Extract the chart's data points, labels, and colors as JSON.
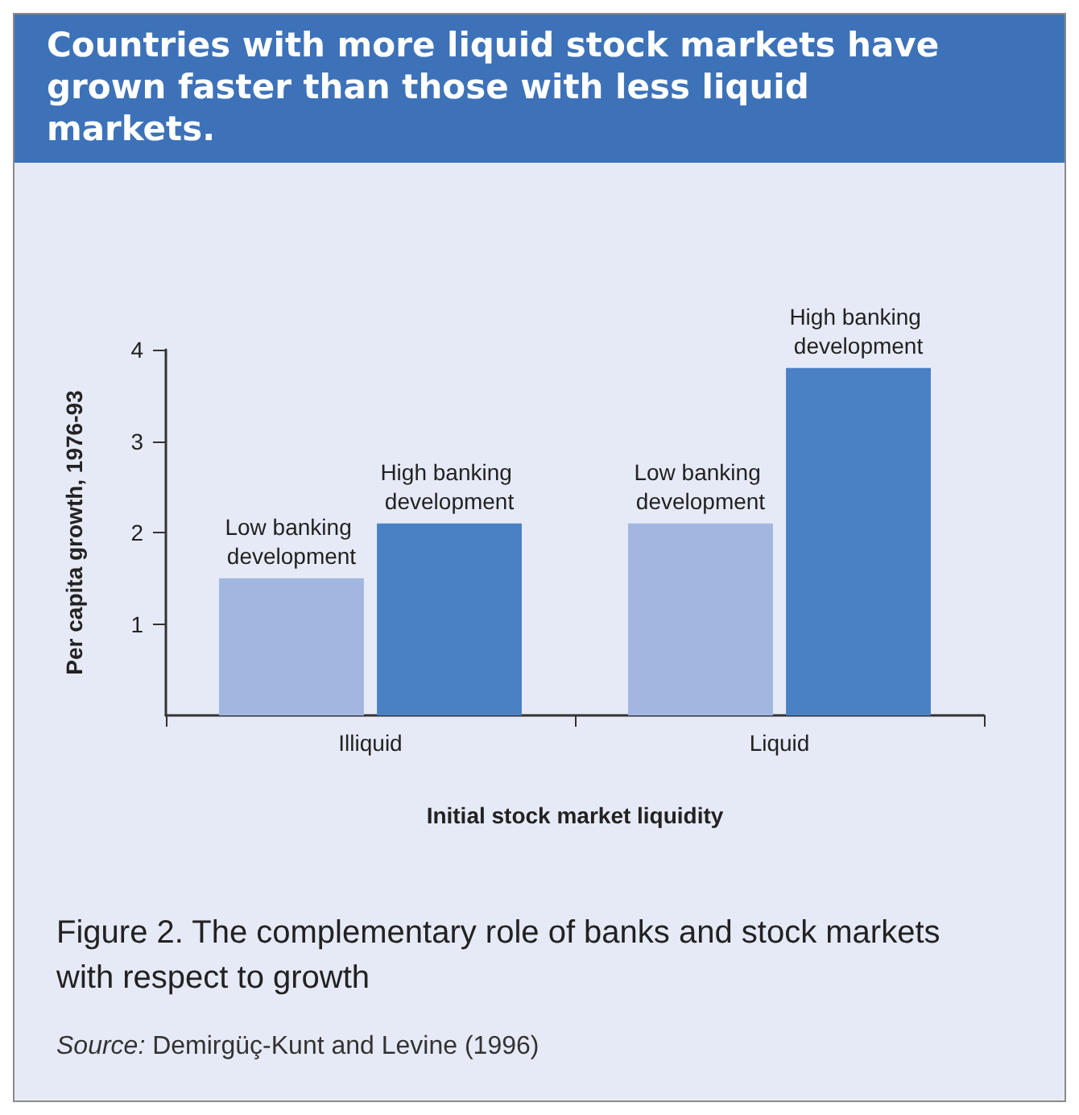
{
  "chart_data": {
    "type": "bar",
    "title": "Countries with more liquid stock markets have grown faster than those with less liquid markets.",
    "xlabel": "Initial stock market liquidity",
    "ylabel": "Per capita growth, 1976-93",
    "categories": [
      "Illiquid",
      "Liquid"
    ],
    "series": [
      {
        "name": "Low banking development",
        "color": "#a2b7df",
        "values": [
          1.5,
          2.1
        ]
      },
      {
        "name": "High banking development",
        "color": "#4a80c4",
        "values": [
          2.1,
          3.8
        ]
      }
    ],
    "ylim": [
      0,
      4
    ],
    "yticks": [
      1,
      2,
      3,
      4
    ],
    "grid": false,
    "annotations": [
      "Figure 2. The complementary role of banks and stock markets with respect to growth",
      "Source: Demirgüç-Kunt and Levine (1996)"
    ]
  }
}
